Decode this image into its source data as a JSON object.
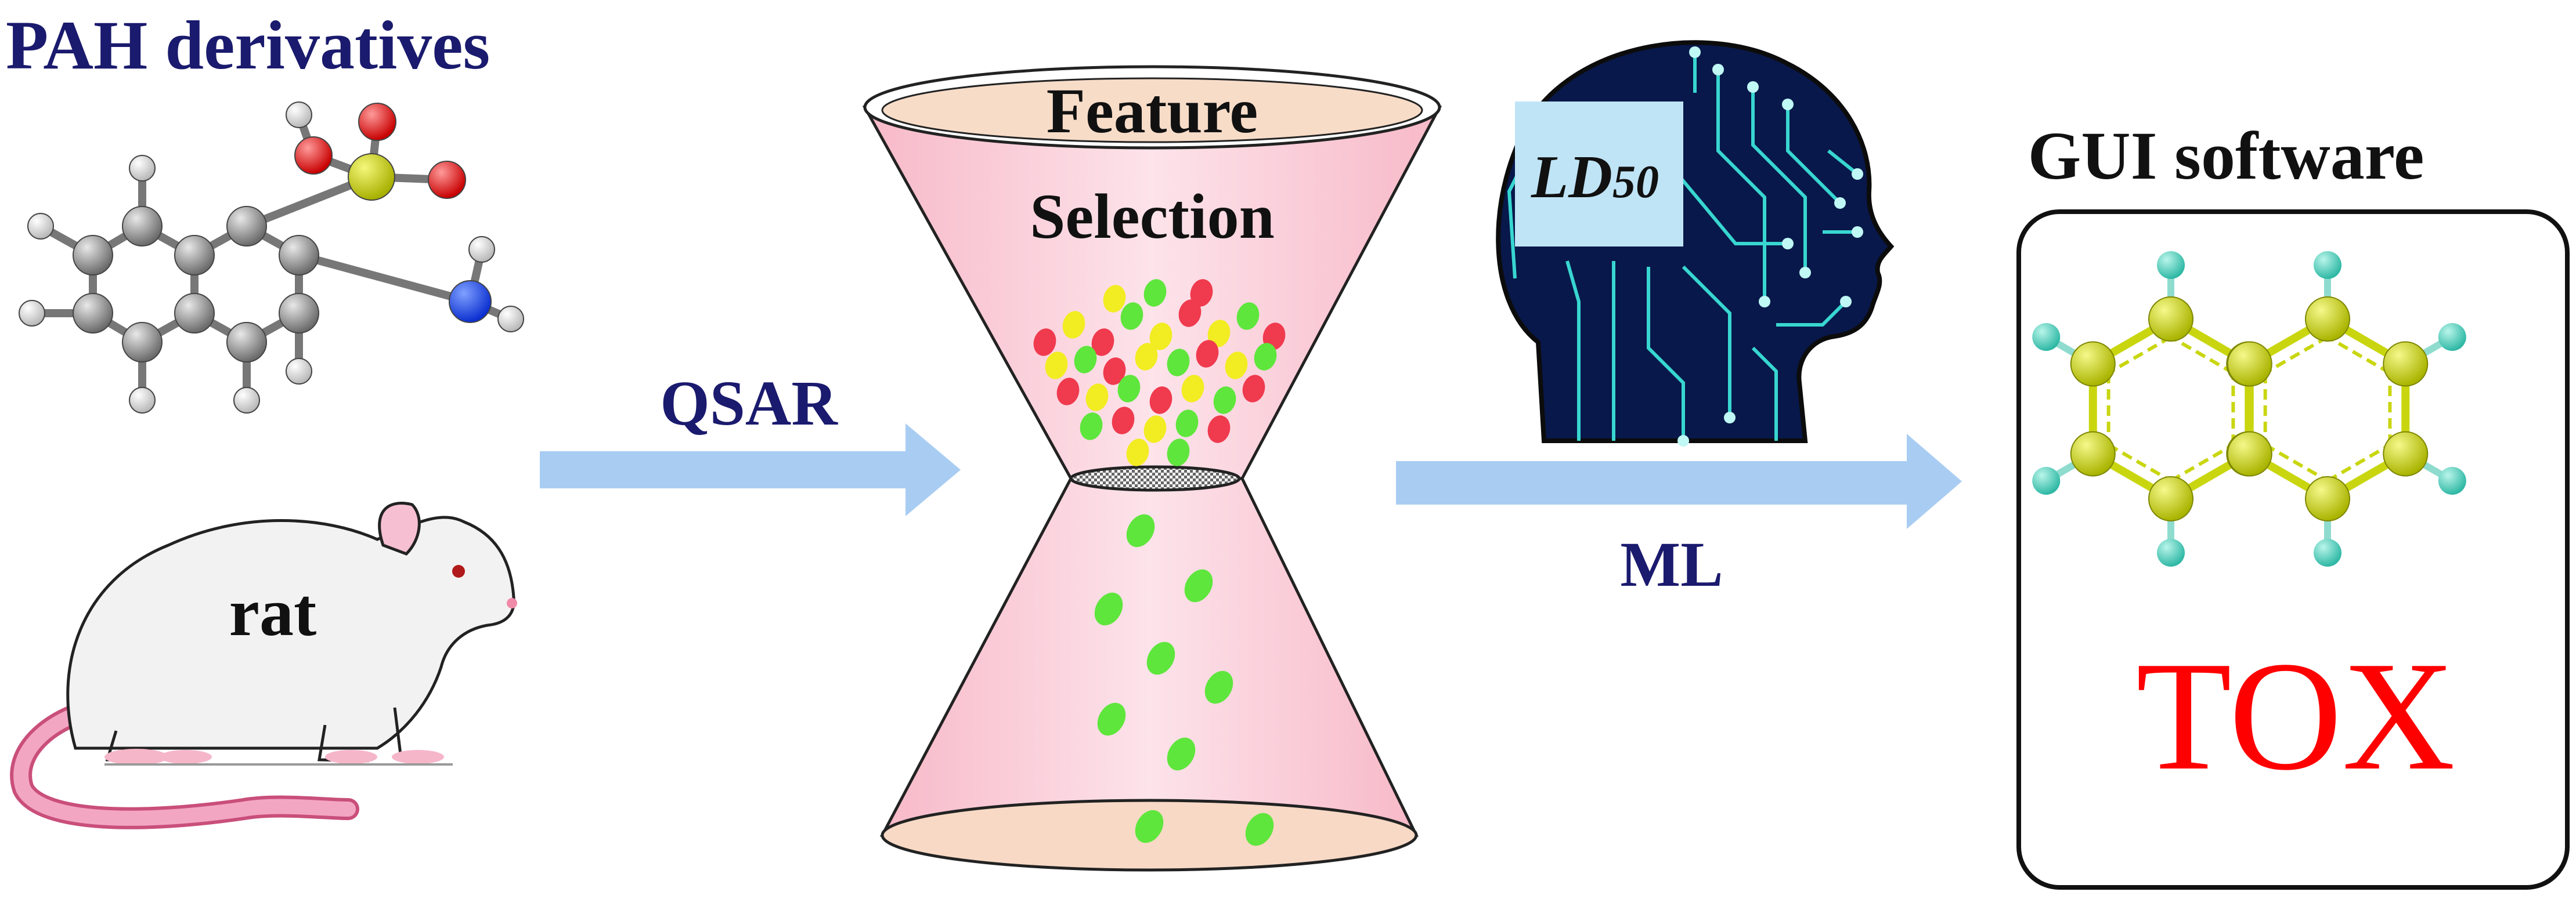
{
  "title": "PAH derivatives",
  "left": {
    "animal_label": "rat"
  },
  "arrows": {
    "qsar_label": "QSAR",
    "ml_label": "ML"
  },
  "funnel": {
    "label_line1": "Feature",
    "label_line2": "Selection"
  },
  "brain": {
    "label_main": "LD",
    "label_sub": "50"
  },
  "gui": {
    "title": "GUI software",
    "product": "TOX"
  },
  "colors": {
    "title_blue": "#1a1a6e",
    "arrow_blue": "#a9cdf2",
    "funnel_pink": "#fbd6df",
    "funnel_lid": "#f7dcc8",
    "tox_red": "#ff0000",
    "atom_yellow": "#c9d60f",
    "atom_teal": "#4fd6c2",
    "circuit_cyan": "#38d6d0",
    "particle_red": "#f03a4e",
    "particle_yellow": "#f2ec22",
    "particle_green": "#5ee63c"
  },
  "icons": [
    "molecule-2-amino-naphthalenesulfonic-acid-icon",
    "rat-icon",
    "circuit-head-icon",
    "naphthalene-molecule-icon",
    "arrow-right-icon"
  ]
}
